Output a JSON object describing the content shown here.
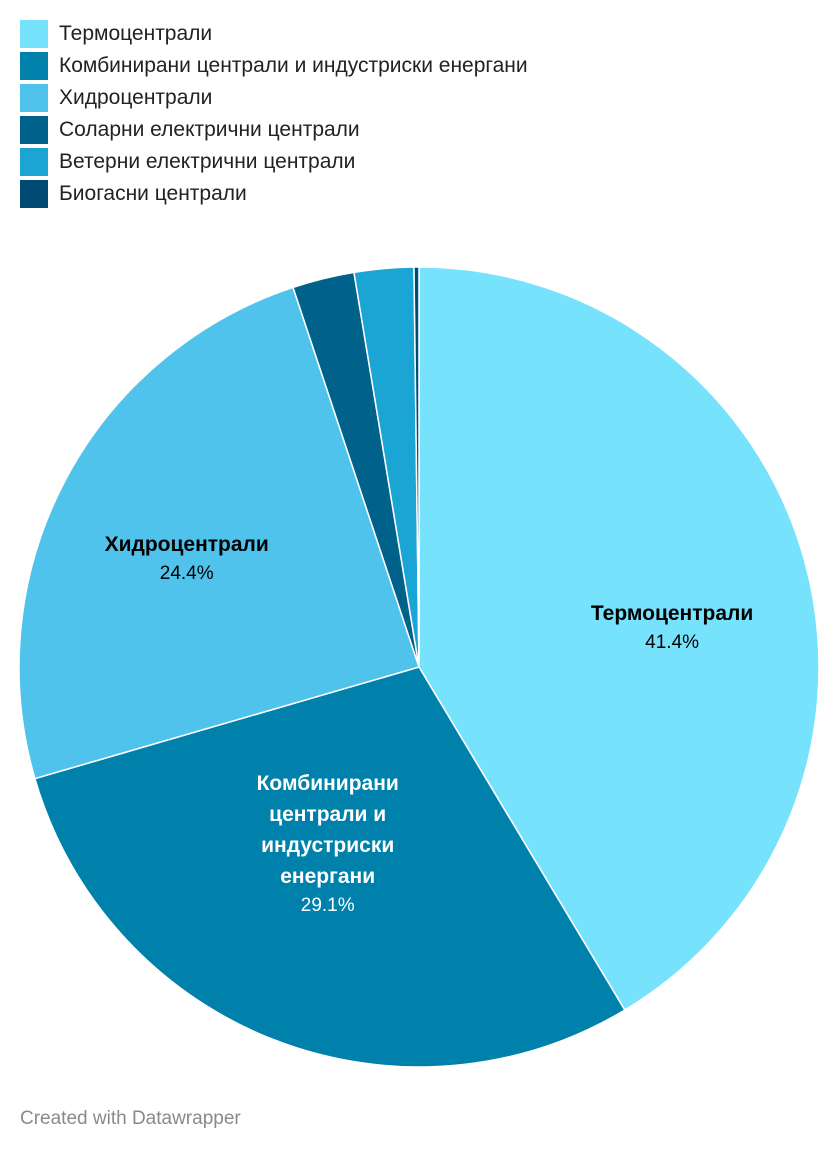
{
  "legend": [
    {
      "label": "Термоцентрали",
      "color": "#76e2fc"
    },
    {
      "label": "Комбинирани централи и индустриски енергани",
      "color": "#0081ab"
    },
    {
      "label": "Хидроцентрали",
      "color": "#4fc3ec"
    },
    {
      "label": "Соларни електрични централи",
      "color": "#00628a"
    },
    {
      "label": "Ветерни електрични централи",
      "color": "#1ba5d4"
    },
    {
      "label": "Биогасни централи",
      "color": "#004a74"
    }
  ],
  "chart_data": {
    "type": "pie",
    "slices": [
      {
        "name": "Термоцентрали",
        "value": 41.4,
        "value_label": "41.4%",
        "color": "#76e2fc",
        "label_lines": [
          "Термоцентрали"
        ],
        "label_color": "#000000",
        "show_label": true
      },
      {
        "name": "Комбинирани централи и индустриски енергани",
        "value": 29.1,
        "value_label": "29.1%",
        "color": "#0081ab",
        "label_lines": [
          "Комбинирани",
          "централи и",
          "индустриски",
          "енергани"
        ],
        "label_color": "#ffffff",
        "show_label": true
      },
      {
        "name": "Хидроцентрали",
        "value": 24.4,
        "value_label": "24.4%",
        "color": "#4fc3ec",
        "label_lines": [
          "Хидроцентрали"
        ],
        "label_color": "#000000",
        "show_label": true
      },
      {
        "name": "Соларни електрични централи",
        "value": 2.5,
        "value_label": "",
        "color": "#00628a",
        "label_lines": [],
        "label_color": "#ffffff",
        "show_label": false
      },
      {
        "name": "Ветерни електрични централи",
        "value": 2.4,
        "value_label": "",
        "color": "#1ba5d4",
        "label_lines": [],
        "label_color": "#ffffff",
        "show_label": false
      },
      {
        "name": "Биогасни централи",
        "value": 0.2,
        "value_label": "",
        "color": "#004a74",
        "label_lines": [],
        "label_color": "#ffffff",
        "show_label": false
      }
    ]
  },
  "footer": {
    "credit": "Created with Datawrapper"
  }
}
